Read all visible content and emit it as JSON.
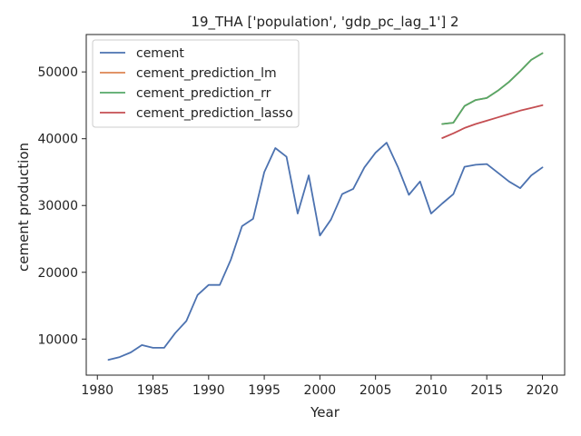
{
  "chart_data": {
    "type": "line",
    "title": "19_THA ['population', 'gdp_pc_lag_1'] 2",
    "xlabel": "Year",
    "ylabel": "cement production",
    "xlim": [
      1979,
      2022
    ],
    "ylim": [
      4600,
      55600
    ],
    "x_ticks": [
      1980,
      1985,
      1990,
      1995,
      2000,
      2005,
      2010,
      2015,
      2020
    ],
    "y_ticks": [
      10000,
      20000,
      30000,
      40000,
      50000
    ],
    "legend_position": "top-left",
    "grid": false,
    "series": [
      {
        "name": "cement",
        "color": "#4c72b0",
        "x": [
          1981,
          1982,
          1983,
          1984,
          1985,
          1986,
          1987,
          1988,
          1989,
          1990,
          1991,
          1992,
          1993,
          1994,
          1995,
          1996,
          1997,
          1998,
          1999,
          2000,
          2001,
          2002,
          2003,
          2004,
          2005,
          2006,
          2007,
          2008,
          2009,
          2010,
          2011,
          2012,
          2013,
          2014,
          2015,
          2016,
          2017,
          2018,
          2019,
          2020
        ],
        "y": [
          6900,
          7300,
          8000,
          9100,
          8700,
          8700,
          10900,
          12700,
          16600,
          18100,
          18100,
          21900,
          26900,
          28000,
          35000,
          38600,
          37300,
          28800,
          34500,
          25500,
          27900,
          31700,
          32500,
          35700,
          37900,
          39400,
          35800,
          31600,
          33600,
          28800,
          30300,
          31700,
          35800,
          36100,
          36200,
          34900,
          33600,
          32600,
          34500,
          35700
        ]
      },
      {
        "name": "cement_prediction_lm",
        "color": "#dd8452",
        "x": [
          2011,
          2012,
          2013,
          2014,
          2015,
          2016,
          2017,
          2018,
          2019,
          2020
        ],
        "y": [
          42200,
          42400,
          44900,
          45800,
          46100,
          47200,
          48500,
          50100,
          51800,
          52800
        ]
      },
      {
        "name": "cement_prediction_rr",
        "color": "#55a868",
        "x": [
          2011,
          2012,
          2013,
          2014,
          2015,
          2016,
          2017,
          2018,
          2019,
          2020
        ],
        "y": [
          42200,
          42400,
          44900,
          45800,
          46100,
          47200,
          48500,
          50100,
          51800,
          52800
        ]
      },
      {
        "name": "cement_prediction_lasso",
        "color": "#c44e52",
        "x": [
          2011,
          2012,
          2013,
          2014,
          2015,
          2016,
          2017,
          2018,
          2019,
          2020
        ],
        "y": [
          40100,
          40800,
          41600,
          42200,
          42700,
          43200,
          43700,
          44200,
          44600,
          45000
        ]
      }
    ]
  }
}
